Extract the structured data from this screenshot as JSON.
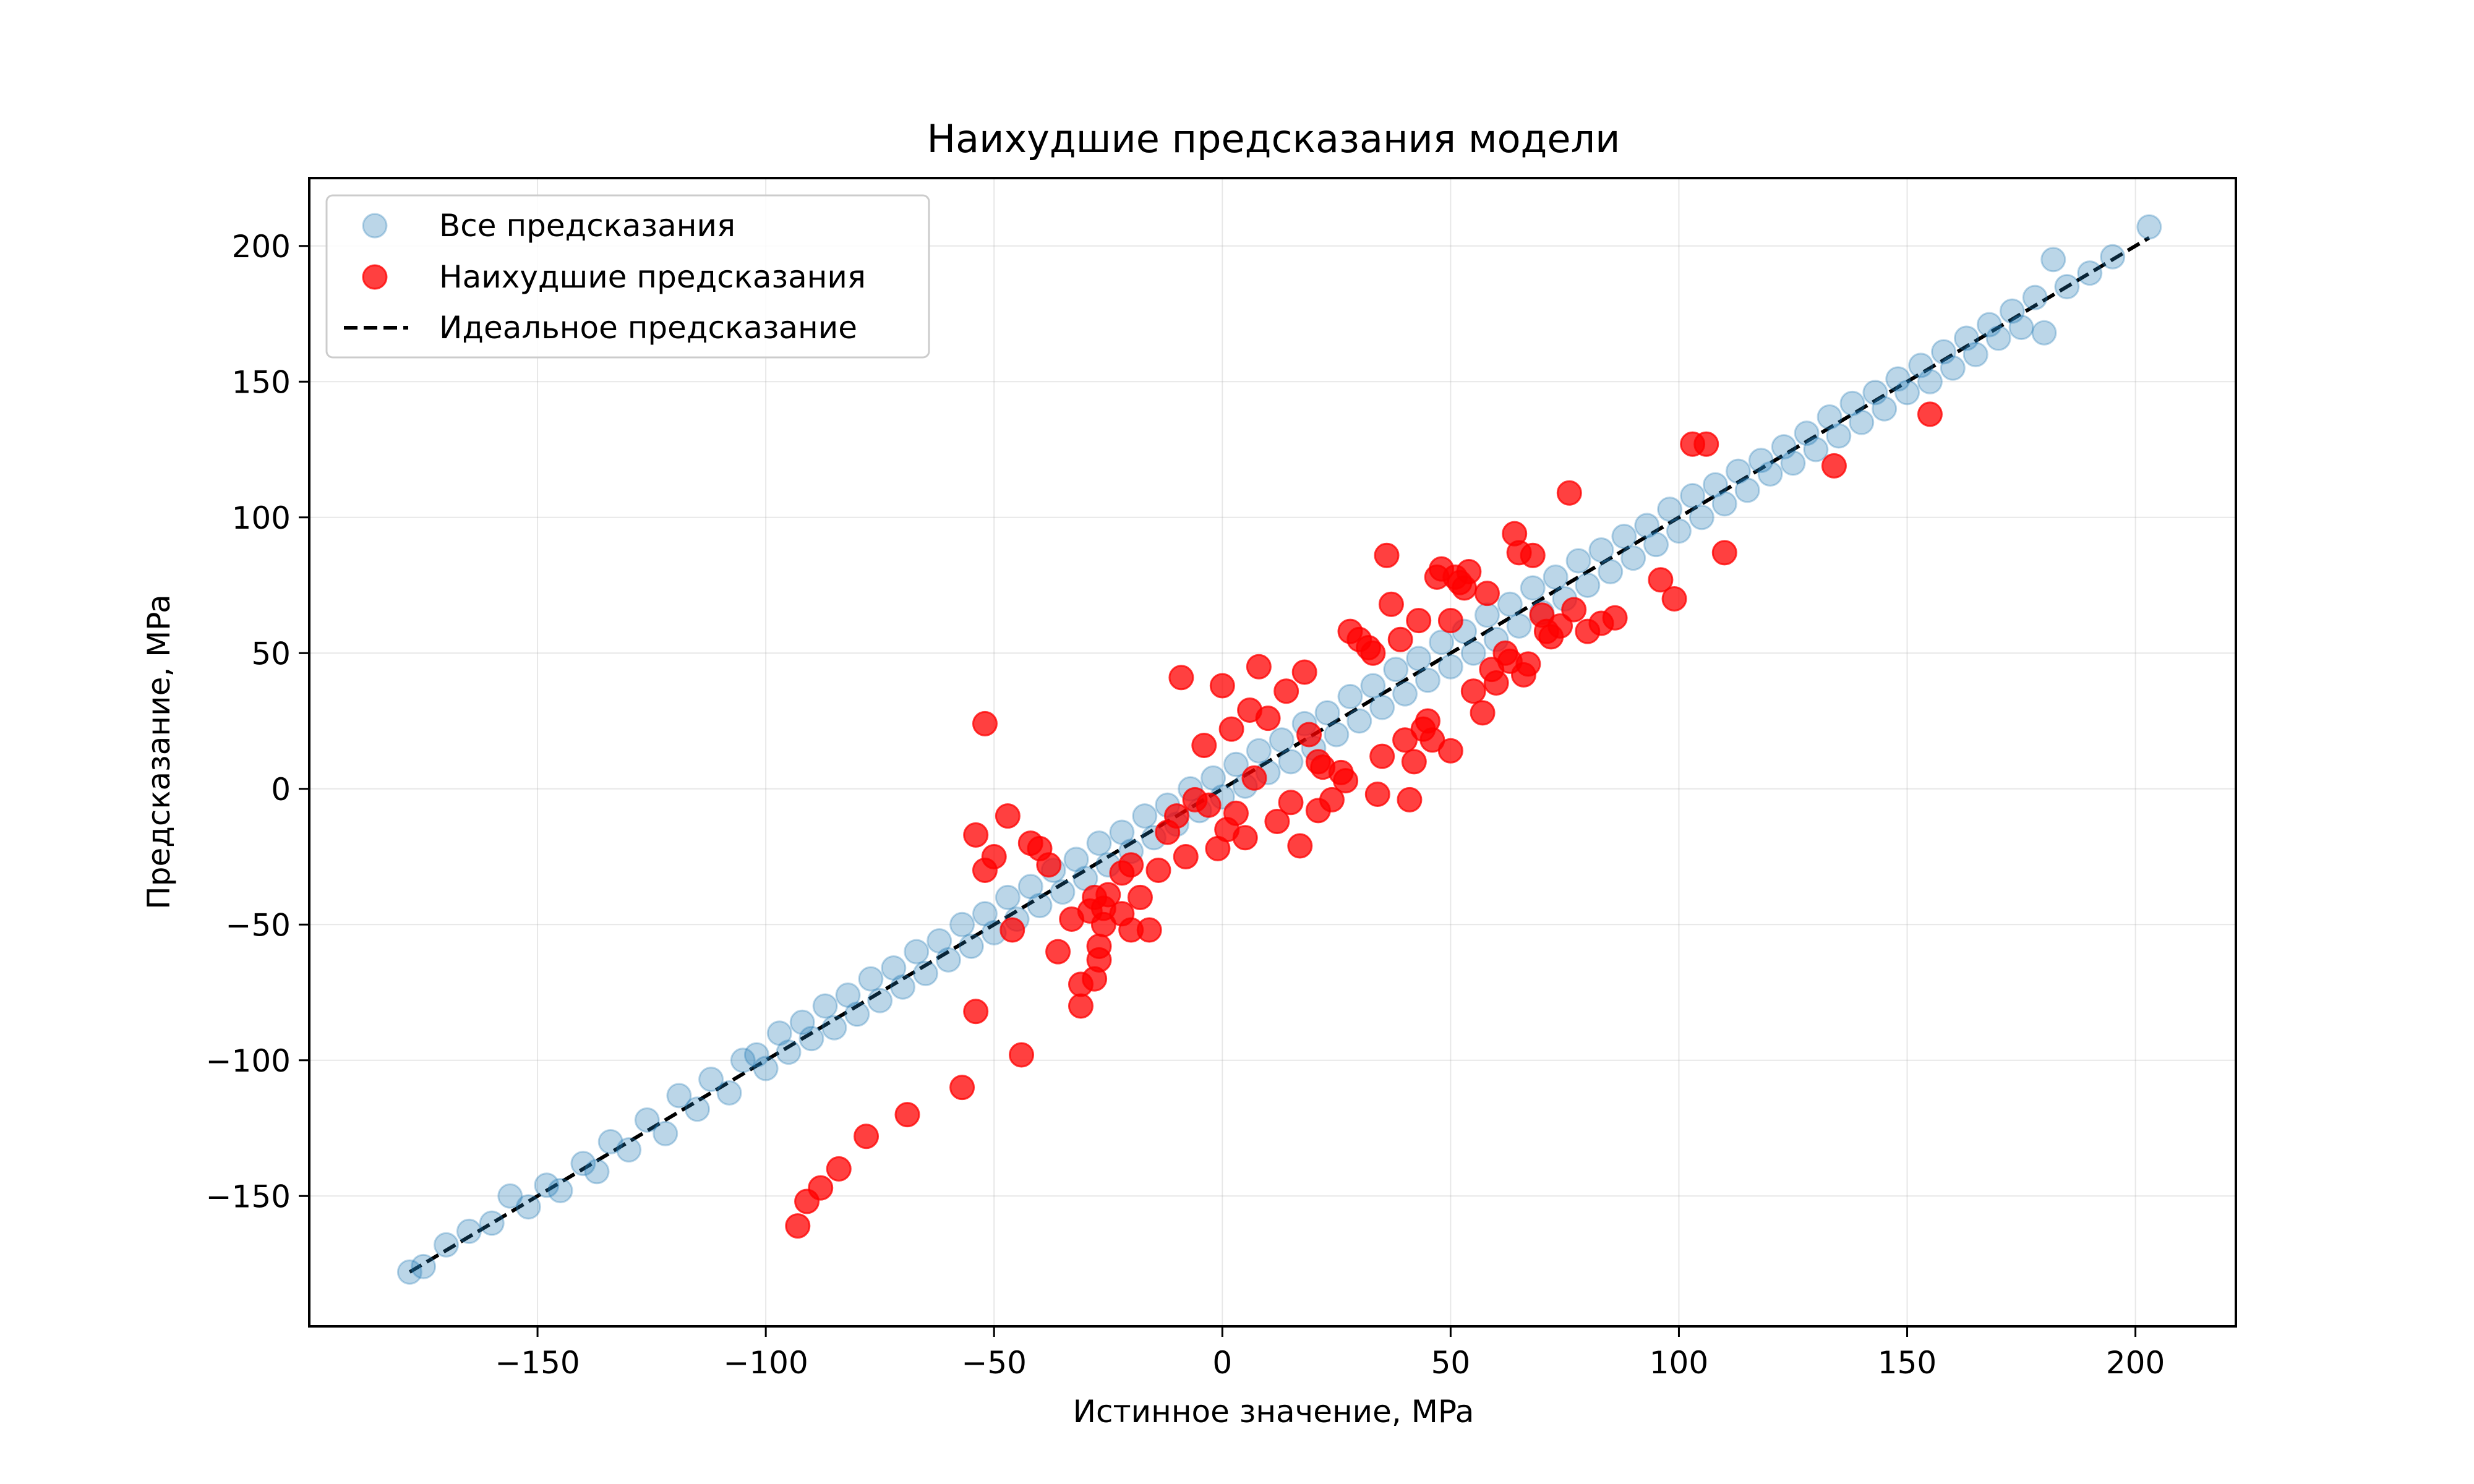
{
  "chart_data": {
    "type": "scatter",
    "title": "Наихудшие предсказания модели",
    "xlabel": "Истинное значение, MPa",
    "ylabel": "Предсказание, MPa",
    "xlim": [
      -200,
      222
    ],
    "ylim": [
      -198,
      225
    ],
    "xticks": [
      -150,
      -100,
      -50,
      0,
      50,
      100,
      150,
      200
    ],
    "yticks": [
      -150,
      -100,
      -50,
      0,
      50,
      100,
      150,
      200
    ],
    "grid": true,
    "legend_position": "top-left",
    "legend": [
      {
        "label": "Все предсказания",
        "kind": "marker",
        "color": "#1f77b4"
      },
      {
        "label": "Наихудшие предсказания",
        "kind": "marker",
        "color": "#ff0000"
      },
      {
        "label": "Идеальное предсказание",
        "kind": "dashed-line",
        "color": "#000000"
      }
    ],
    "ideal_line": {
      "x": [
        -178,
        203
      ],
      "y": [
        -178,
        203
      ]
    },
    "series": [
      {
        "name": "Все предсказания",
        "color": "#1f77b4",
        "alpha": 0.3,
        "points_note_generated_along_diagonal": false,
        "points": [
          [
            -178,
            -178
          ],
          [
            -175,
            -176
          ],
          [
            -170,
            -168
          ],
          [
            -165,
            -163
          ],
          [
            -160,
            -160
          ],
          [
            -156,
            -150
          ],
          [
            -152,
            -154
          ],
          [
            -148,
            -146
          ],
          [
            -145,
            -148
          ],
          [
            -140,
            -138
          ],
          [
            -137,
            -141
          ],
          [
            -134,
            -130
          ],
          [
            -130,
            -133
          ],
          [
            -126,
            -122
          ],
          [
            -122,
            -127
          ],
          [
            -119,
            -113
          ],
          [
            -115,
            -118
          ],
          [
            -112,
            -107
          ],
          [
            -108,
            -112
          ],
          [
            -105,
            -100
          ],
          [
            -102,
            -98
          ],
          [
            -100,
            -103
          ],
          [
            -97,
            -90
          ],
          [
            -95,
            -97
          ],
          [
            -92,
            -86
          ],
          [
            -90,
            -92
          ],
          [
            -87,
            -80
          ],
          [
            -85,
            -88
          ],
          [
            -82,
            -76
          ],
          [
            -80,
            -83
          ],
          [
            -77,
            -70
          ],
          [
            -75,
            -78
          ],
          [
            -72,
            -66
          ],
          [
            -70,
            -73
          ],
          [
            -67,
            -60
          ],
          [
            -65,
            -68
          ],
          [
            -62,
            -56
          ],
          [
            -60,
            -63
          ],
          [
            -57,
            -50
          ],
          [
            -55,
            -58
          ],
          [
            -52,
            -46
          ],
          [
            -50,
            -53
          ],
          [
            -47,
            -40
          ],
          [
            -45,
            -48
          ],
          [
            -42,
            -36
          ],
          [
            -40,
            -43
          ],
          [
            -37,
            -30
          ],
          [
            -35,
            -38
          ],
          [
            -32,
            -26
          ],
          [
            -30,
            -33
          ],
          [
            -27,
            -20
          ],
          [
            -25,
            -28
          ],
          [
            -22,
            -16
          ],
          [
            -20,
            -23
          ],
          [
            -17,
            -10
          ],
          [
            -15,
            -18
          ],
          [
            -12,
            -6
          ],
          [
            -10,
            -13
          ],
          [
            -7,
            0
          ],
          [
            -5,
            -8
          ],
          [
            -2,
            4
          ],
          [
            0,
            -3
          ],
          [
            3,
            9
          ],
          [
            5,
            1
          ],
          [
            8,
            14
          ],
          [
            10,
            6
          ],
          [
            13,
            18
          ],
          [
            15,
            10
          ],
          [
            18,
            24
          ],
          [
            20,
            15
          ],
          [
            23,
            28
          ],
          [
            25,
            20
          ],
          [
            28,
            34
          ],
          [
            30,
            25
          ],
          [
            33,
            38
          ],
          [
            35,
            30
          ],
          [
            38,
            44
          ],
          [
            40,
            35
          ],
          [
            43,
            48
          ],
          [
            45,
            40
          ],
          [
            48,
            54
          ],
          [
            50,
            45
          ],
          [
            53,
            58
          ],
          [
            55,
            50
          ],
          [
            58,
            64
          ],
          [
            60,
            55
          ],
          [
            63,
            68
          ],
          [
            65,
            60
          ],
          [
            68,
            74
          ],
          [
            70,
            65
          ],
          [
            73,
            78
          ],
          [
            75,
            70
          ],
          [
            78,
            84
          ],
          [
            80,
            75
          ],
          [
            83,
            88
          ],
          [
            85,
            80
          ],
          [
            88,
            93
          ],
          [
            90,
            85
          ],
          [
            93,
            97
          ],
          [
            95,
            90
          ],
          [
            98,
            103
          ],
          [
            100,
            95
          ],
          [
            103,
            108
          ],
          [
            105,
            100
          ],
          [
            108,
            112
          ],
          [
            110,
            105
          ],
          [
            113,
            117
          ],
          [
            115,
            110
          ],
          [
            118,
            121
          ],
          [
            120,
            116
          ],
          [
            123,
            126
          ],
          [
            125,
            120
          ],
          [
            128,
            131
          ],
          [
            130,
            125
          ],
          [
            133,
            137
          ],
          [
            135,
            130
          ],
          [
            138,
            142
          ],
          [
            140,
            135
          ],
          [
            143,
            146
          ],
          [
            145,
            140
          ],
          [
            148,
            151
          ],
          [
            150,
            146
          ],
          [
            153,
            156
          ],
          [
            155,
            150
          ],
          [
            158,
            161
          ],
          [
            160,
            155
          ],
          [
            163,
            166
          ],
          [
            165,
            160
          ],
          [
            168,
            171
          ],
          [
            170,
            166
          ],
          [
            173,
            176
          ],
          [
            175,
            170
          ],
          [
            178,
            181
          ],
          [
            180,
            168
          ],
          [
            182,
            195
          ],
          [
            185,
            185
          ],
          [
            190,
            190
          ],
          [
            195,
            196
          ],
          [
            203,
            207
          ]
        ]
      },
      {
        "name": "Наихудшие предсказания",
        "color": "#ff0000",
        "alpha": 0.75,
        "points": [
          [
            -93,
            -161
          ],
          [
            -91,
            -152
          ],
          [
            -88,
            -147
          ],
          [
            -84,
            -140
          ],
          [
            -78,
            -128
          ],
          [
            -69,
            -120
          ],
          [
            -57,
            -110
          ],
          [
            -52,
            24
          ],
          [
            -54,
            -82
          ],
          [
            -54,
            -17
          ],
          [
            -50,
            -25
          ],
          [
            -52,
            -30
          ],
          [
            -47,
            -10
          ],
          [
            -46,
            -52
          ],
          [
            -44,
            -98
          ],
          [
            -42,
            -20
          ],
          [
            -40,
            -22
          ],
          [
            -38,
            -28
          ],
          [
            -36,
            -60
          ],
          [
            -33,
            -48
          ],
          [
            -31,
            -80
          ],
          [
            -31,
            -72
          ],
          [
            -29,
            -45
          ],
          [
            -28,
            -40
          ],
          [
            -28,
            -70
          ],
          [
            -27,
            -63
          ],
          [
            -27,
            -58
          ],
          [
            -26,
            -50
          ],
          [
            -26,
            -44
          ],
          [
            -25,
            -39
          ],
          [
            -22,
            -46
          ],
          [
            -22,
            -31
          ],
          [
            -20,
            -52
          ],
          [
            -20,
            -28
          ],
          [
            -18,
            -40
          ],
          [
            -16,
            -52
          ],
          [
            -14,
            -30
          ],
          [
            -12,
            -16
          ],
          [
            -10,
            -10
          ],
          [
            -9,
            41
          ],
          [
            -8,
            -25
          ],
          [
            -6,
            -4
          ],
          [
            -4,
            16
          ],
          [
            -3,
            -6
          ],
          [
            -1,
            -22
          ],
          [
            0,
            38
          ],
          [
            1,
            -15
          ],
          [
            2,
            22
          ],
          [
            3,
            -9
          ],
          [
            5,
            -18
          ],
          [
            6,
            29
          ],
          [
            7,
            4
          ],
          [
            8,
            45
          ],
          [
            10,
            26
          ],
          [
            12,
            -12
          ],
          [
            14,
            36
          ],
          [
            15,
            -5
          ],
          [
            17,
            -21
          ],
          [
            18,
            43
          ],
          [
            19,
            20
          ],
          [
            21,
            10
          ],
          [
            21,
            -8
          ],
          [
            22,
            8
          ],
          [
            24,
            -4
          ],
          [
            26,
            6
          ],
          [
            27,
            3
          ],
          [
            28,
            58
          ],
          [
            30,
            55
          ],
          [
            32,
            52
          ],
          [
            33,
            50
          ],
          [
            34,
            -2
          ],
          [
            35,
            12
          ],
          [
            36,
            86
          ],
          [
            37,
            68
          ],
          [
            39,
            55
          ],
          [
            40,
            18
          ],
          [
            41,
            -4
          ],
          [
            42,
            10
          ],
          [
            43,
            62
          ],
          [
            44,
            22
          ],
          [
            45,
            25
          ],
          [
            46,
            18
          ],
          [
            47,
            78
          ],
          [
            48,
            81
          ],
          [
            50,
            62
          ],
          [
            50,
            14
          ],
          [
            51,
            78
          ],
          [
            52,
            76
          ],
          [
            53,
            74
          ],
          [
            54,
            80
          ],
          [
            55,
            36
          ],
          [
            57,
            28
          ],
          [
            58,
            72
          ],
          [
            59,
            44
          ],
          [
            60,
            39
          ],
          [
            62,
            50
          ],
          [
            63,
            47
          ],
          [
            64,
            94
          ],
          [
            65,
            87
          ],
          [
            66,
            42
          ],
          [
            67,
            46
          ],
          [
            68,
            86
          ],
          [
            70,
            64
          ],
          [
            71,
            58
          ],
          [
            72,
            56
          ],
          [
            74,
            60
          ],
          [
            76,
            109
          ],
          [
            77,
            66
          ],
          [
            80,
            58
          ],
          [
            83,
            61
          ],
          [
            86,
            63
          ],
          [
            96,
            77
          ],
          [
            99,
            70
          ],
          [
            103,
            127
          ],
          [
            106,
            127
          ],
          [
            110,
            87
          ],
          [
            134,
            119
          ],
          [
            155,
            138
          ]
        ]
      }
    ]
  }
}
